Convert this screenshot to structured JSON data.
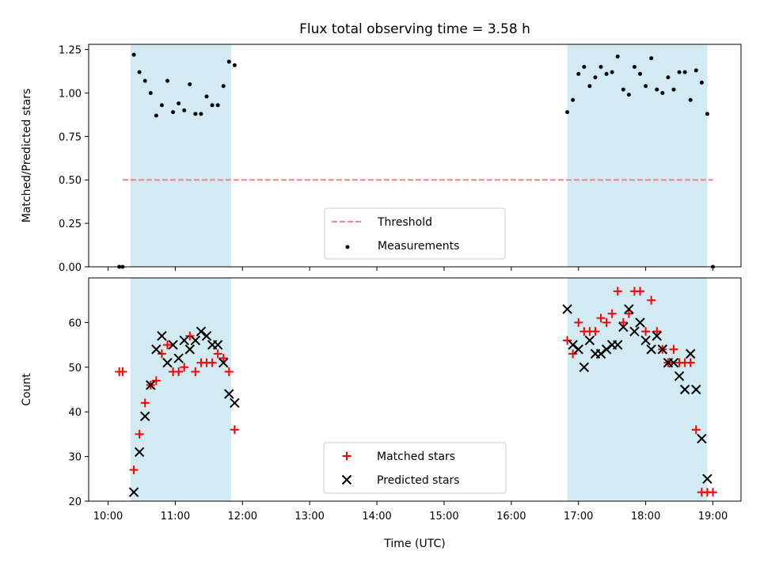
{
  "chart_data": [
    {
      "type": "scatter",
      "title": "Flux total observing time = 3.58 h",
      "xlabel": "",
      "ylabel": "Matched/Predicted stars",
      "xlim": [
        "10:00",
        "19:00"
      ],
      "ylim": [
        0,
        1.28
      ],
      "x_ticks": [
        "10:00",
        "11:00",
        "12:00",
        "13:00",
        "14:00",
        "15:00",
        "16:00",
        "17:00",
        "18:00",
        "19:00"
      ],
      "y_ticks": [
        "0.00",
        "0.25",
        "0.50",
        "0.75",
        "1.00",
        "1.25"
      ],
      "y_tick_values": [
        0,
        0.25,
        0.5,
        0.75,
        1.0,
        1.25
      ],
      "shaded_intervals": [
        [
          "10:20",
          "11:50"
        ],
        [
          "16:50",
          "18:55"
        ]
      ],
      "shade_color": "#add8e6",
      "legend_position": "lower center",
      "series": [
        {
          "name": "Threshold",
          "kind": "hline",
          "color": "#ff7f7f",
          "style": "dashed",
          "x": [
            "10:13",
            "19:00"
          ],
          "y": 0.5
        },
        {
          "name": "Measurements",
          "kind": "points",
          "color": "#000000",
          "x": [
            "10:10",
            "10:13",
            "10:23",
            "10:28",
            "10:33",
            "10:38",
            "10:43",
            "10:48",
            "10:53",
            "10:58",
            "11:03",
            "11:08",
            "11:13",
            "11:18",
            "11:23",
            "11:28",
            "11:33",
            "11:38",
            "11:43",
            "11:48",
            "11:53",
            "16:50",
            "16:55",
            "17:00",
            "17:05",
            "17:10",
            "17:15",
            "17:20",
            "17:25",
            "17:30",
            "17:35",
            "17:40",
            "17:45",
            "17:50",
            "17:55",
            "18:00",
            "18:05",
            "18:10",
            "18:15",
            "18:20",
            "18:25",
            "18:30",
            "18:35",
            "18:40",
            "18:45",
            "18:50",
            "18:55",
            "19:00"
          ],
          "y": [
            0.0,
            0.0,
            1.22,
            1.12,
            1.07,
            1.0,
            0.87,
            0.93,
            1.07,
            0.89,
            0.94,
            0.9,
            1.05,
            0.88,
            0.88,
            0.98,
            0.93,
            0.93,
            1.04,
            1.18,
            1.16,
            0.89,
            0.96,
            1.11,
            1.15,
            1.04,
            1.09,
            1.15,
            1.11,
            1.12,
            1.21,
            1.02,
            0.99,
            1.15,
            1.11,
            1.04,
            1.2,
            1.02,
            1.0,
            1.09,
            1.02,
            1.12,
            1.12,
            0.96,
            1.13,
            1.06,
            0.88,
            0.0
          ]
        }
      ]
    },
    {
      "type": "scatter",
      "title": "",
      "xlabel": "Time (UTC)",
      "ylabel": "Count",
      "xlim": [
        "10:00",
        "19:00"
      ],
      "ylim": [
        20,
        70
      ],
      "x_ticks": [
        "10:00",
        "11:00",
        "12:00",
        "13:00",
        "14:00",
        "15:00",
        "16:00",
        "17:00",
        "18:00",
        "19:00"
      ],
      "y_ticks": [
        "20",
        "30",
        "40",
        "50",
        "60"
      ],
      "y_tick_values": [
        20,
        30,
        40,
        50,
        60
      ],
      "shaded_intervals": [
        [
          "10:20",
          "11:50"
        ],
        [
          "16:50",
          "18:55"
        ]
      ],
      "shade_color": "#add8e6",
      "legend_position": "lower center",
      "series": [
        {
          "name": "Matched stars",
          "kind": "plus",
          "color": "#ff0000",
          "x": [
            "10:10",
            "10:13",
            "10:23",
            "10:28",
            "10:33",
            "10:38",
            "10:43",
            "10:48",
            "10:53",
            "10:58",
            "11:03",
            "11:08",
            "11:13",
            "11:18",
            "11:23",
            "11:28",
            "11:33",
            "11:38",
            "11:43",
            "11:48",
            "11:53",
            "16:50",
            "16:55",
            "17:00",
            "17:05",
            "17:10",
            "17:15",
            "17:20",
            "17:25",
            "17:30",
            "17:35",
            "17:40",
            "17:45",
            "17:50",
            "17:55",
            "18:00",
            "18:05",
            "18:10",
            "18:15",
            "18:20",
            "18:25",
            "18:30",
            "18:35",
            "18:40",
            "18:45",
            "18:50",
            "18:55",
            "19:00"
          ],
          "y": [
            49,
            49,
            27,
            35,
            42,
            46,
            47,
            53,
            55,
            49,
            49,
            50,
            57,
            49,
            51,
            51,
            51,
            53,
            52,
            49,
            36,
            56,
            53,
            60,
            58,
            58,
            58,
            61,
            60,
            62,
            67,
            60,
            62,
            67,
            67,
            58,
            65,
            58,
            54,
            51,
            54,
            51,
            51,
            51,
            36,
            22,
            22,
            22
          ]
        },
        {
          "name": "Predicted stars",
          "kind": "cross",
          "color": "#000000",
          "x": [
            "10:23",
            "10:28",
            "10:33",
            "10:38",
            "10:43",
            "10:48",
            "10:53",
            "10:58",
            "11:03",
            "11:08",
            "11:13",
            "11:18",
            "11:23",
            "11:28",
            "11:33",
            "11:38",
            "11:43",
            "11:48",
            "11:53",
            "16:50",
            "16:55",
            "17:00",
            "17:05",
            "17:10",
            "17:15",
            "17:20",
            "17:25",
            "17:30",
            "17:35",
            "17:40",
            "17:45",
            "17:50",
            "17:55",
            "18:00",
            "18:05",
            "18:10",
            "18:15",
            "18:20",
            "18:25",
            "18:30",
            "18:35",
            "18:40",
            "18:45",
            "18:50",
            "18:55"
          ],
          "y": [
            22,
            31,
            39,
            46,
            54,
            57,
            51,
            55,
            52,
            56,
            54,
            56,
            58,
            57,
            55,
            55,
            51,
            44,
            42,
            63,
            55,
            54,
            50,
            56,
            53,
            53,
            54,
            55,
            55,
            59,
            63,
            58,
            60,
            56,
            54,
            57,
            54,
            51,
            51,
            48,
            45,
            53,
            45,
            34,
            25
          ]
        }
      ]
    }
  ]
}
